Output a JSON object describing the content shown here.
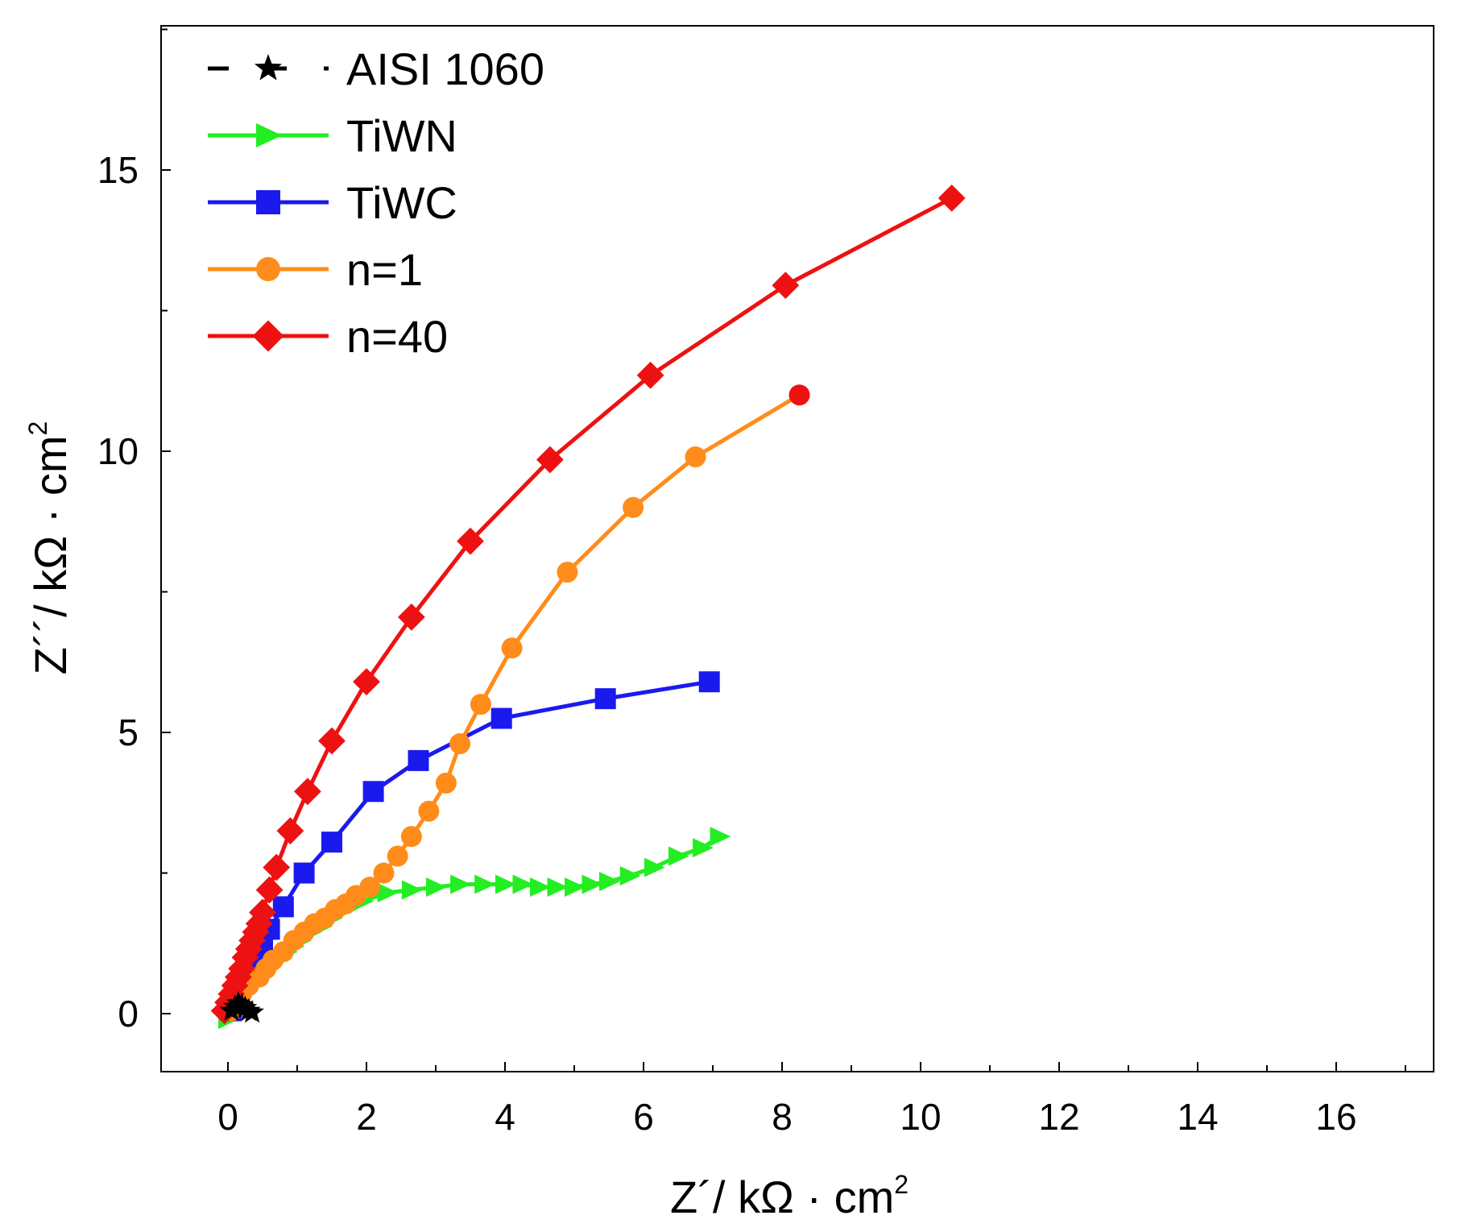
{
  "chart_data": {
    "type": "scatter",
    "title": "",
    "xlabel": "Z´/ kΩ · cm",
    "xlabel_sup": "2",
    "ylabel": "Z´´/ kΩ · cm",
    "ylabel_sup": "2",
    "xlim": [
      -1,
      17.5
    ],
    "ylim": [
      -1,
      17.5
    ],
    "x_ticks": [
      "0",
      "2",
      "4",
      "6",
      "8",
      "10",
      "12",
      "14",
      "16"
    ],
    "x_tick_values": [
      0,
      2,
      4,
      6,
      8,
      10,
      12,
      14,
      16
    ],
    "y_ticks": [
      "0",
      "5",
      "10",
      "15"
    ],
    "y_tick_values": [
      0,
      5,
      10,
      15
    ],
    "legend_position": "top-left",
    "series": [
      {
        "name": "AISI 1060",
        "color": "#000000",
        "marker": "star",
        "dashed": true,
        "x": [
          0.05,
          0.1,
          0.15,
          0.2,
          0.25,
          0.3,
          0.35
        ],
        "y": [
          0.05,
          0.12,
          0.18,
          0.15,
          0.1,
          0.05,
          0.02
        ]
      },
      {
        "name": "TiWN",
        "color": "#22ee22",
        "marker": "triangle-right",
        "dashed": false,
        "x": [
          0.0,
          0.05,
          0.1,
          0.15,
          0.2,
          0.28,
          0.35,
          0.45,
          0.55,
          0.65,
          0.75,
          0.85,
          0.95,
          1.05,
          1.2,
          1.35,
          1.5,
          1.7,
          1.95,
          2.3,
          2.65,
          3.0,
          3.35,
          3.7,
          4.0,
          4.25,
          4.5,
          4.75,
          5.0,
          5.25,
          5.5,
          5.8,
          6.15,
          6.5,
          6.85,
          7.1
        ],
        "y": [
          -0.1,
          0.05,
          0.15,
          0.25,
          0.35,
          0.45,
          0.55,
          0.65,
          0.8,
          0.9,
          1.0,
          1.1,
          1.2,
          1.3,
          1.45,
          1.55,
          1.7,
          1.85,
          2.0,
          2.15,
          2.2,
          2.25,
          2.3,
          2.3,
          2.3,
          2.3,
          2.25,
          2.25,
          2.25,
          2.3,
          2.35,
          2.45,
          2.6,
          2.8,
          2.95,
          3.15
        ]
      },
      {
        "name": "TiWC",
        "color": "#1a1aee",
        "marker": "square",
        "dashed": false,
        "x": [
          0.05,
          0.1,
          0.15,
          0.2,
          0.3,
          0.4,
          0.5,
          0.6,
          0.8,
          1.1,
          1.5,
          2.1,
          2.75,
          3.95,
          5.45,
          6.95
        ],
        "y": [
          0.05,
          0.2,
          0.4,
          0.6,
          0.8,
          1.0,
          1.25,
          1.5,
          1.9,
          2.5,
          3.05,
          3.95,
          4.5,
          5.25,
          5.6,
          5.9
        ]
      },
      {
        "name": "n=1",
        "color": "#ff8c1a",
        "marker": "circle",
        "dashed": false,
        "last_color": "#ee1111",
        "x": [
          0.05,
          0.1,
          0.15,
          0.2,
          0.3,
          0.45,
          0.55,
          0.65,
          0.8,
          0.95,
          1.1,
          1.25,
          1.4,
          1.55,
          1.7,
          1.85,
          2.05,
          2.25,
          2.45,
          2.65,
          2.9,
          3.15,
          3.35,
          3.65,
          4.1,
          4.9,
          5.85,
          6.75,
          8.25
        ],
        "y": [
          0.05,
          0.15,
          0.25,
          0.35,
          0.5,
          0.65,
          0.8,
          0.95,
          1.1,
          1.3,
          1.45,
          1.6,
          1.7,
          1.85,
          1.95,
          2.1,
          2.25,
          2.5,
          2.8,
          3.15,
          3.6,
          4.1,
          4.8,
          5.5,
          6.5,
          7.85,
          9.0,
          9.9,
          11.0
        ]
      },
      {
        "name": "n=40",
        "color": "#ee1111",
        "marker": "diamond",
        "dashed": false,
        "x": [
          -0.05,
          0.0,
          0.05,
          0.1,
          0.15,
          0.2,
          0.25,
          0.3,
          0.35,
          0.4,
          0.45,
          0.5,
          0.6,
          0.7,
          0.9,
          1.15,
          1.5,
          2.0,
          2.65,
          3.5,
          4.65,
          6.1,
          8.05,
          10.45
        ],
        "y": [
          0.05,
          0.2,
          0.35,
          0.5,
          0.65,
          0.8,
          1.0,
          1.15,
          1.3,
          1.45,
          1.6,
          1.8,
          2.2,
          2.6,
          3.25,
          3.95,
          4.85,
          5.9,
          7.05,
          8.4,
          9.85,
          11.35,
          12.95,
          14.5
        ]
      }
    ]
  }
}
